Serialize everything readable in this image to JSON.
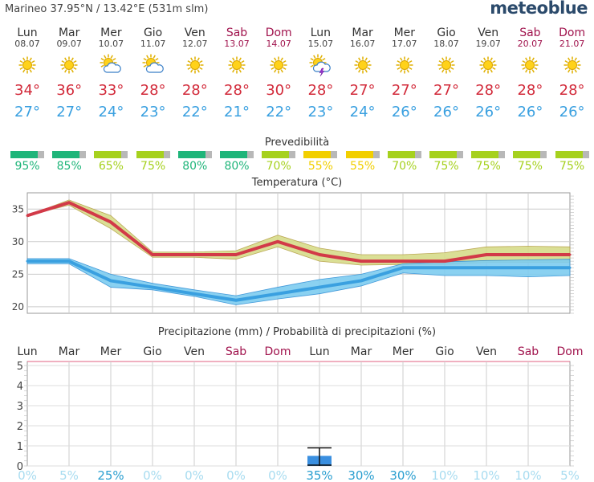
{
  "header": {
    "location": "Marineo  37.95°N / 13.42°E (531m slm)",
    "brand": "meteoblue"
  },
  "days": [
    {
      "name": "Lun",
      "date": "08.07",
      "weekend": false,
      "icon": "sun-icon",
      "tmax": "34°",
      "tmin": "27°",
      "pred": 95,
      "pred_label": "95%",
      "pred_color": "#1fb57a"
    },
    {
      "name": "Mar",
      "date": "09.07",
      "weekend": false,
      "icon": "sun-icon",
      "tmax": "36°",
      "tmin": "27°",
      "pred": 85,
      "pred_label": "85%",
      "pred_color": "#1fb57a"
    },
    {
      "name": "Mer",
      "date": "10.07",
      "weekend": false,
      "icon": "sun-cloud-icon",
      "tmax": "33°",
      "tmin": "24°",
      "pred": 65,
      "pred_label": "65%",
      "pred_color": "#a6d11e"
    },
    {
      "name": "Gio",
      "date": "11.07",
      "weekend": false,
      "icon": "sun-cloud-icon",
      "tmax": "28°",
      "tmin": "23°",
      "pred": 75,
      "pred_label": "75%",
      "pred_color": "#a6d11e"
    },
    {
      "name": "Ven",
      "date": "12.07",
      "weekend": false,
      "icon": "sun-icon",
      "tmax": "28°",
      "tmin": "22°",
      "pred": 80,
      "pred_label": "80%",
      "pred_color": "#1fb57a"
    },
    {
      "name": "Sab",
      "date": "13.07",
      "weekend": true,
      "icon": "sun-icon",
      "tmax": "28°",
      "tmin": "21°",
      "pred": 80,
      "pred_label": "80%",
      "pred_color": "#1fb57a"
    },
    {
      "name": "Dom",
      "date": "14.07",
      "weekend": true,
      "icon": "sun-icon",
      "tmax": "30°",
      "tmin": "22°",
      "pred": 70,
      "pred_label": "70%",
      "pred_color": "#a6d11e"
    },
    {
      "name": "Lun",
      "date": "15.07",
      "weekend": false,
      "icon": "sun-storm-icon",
      "tmax": "28°",
      "tmin": "23°",
      "pred": 55,
      "pred_label": "55%",
      "pred_color": "#f2cf00"
    },
    {
      "name": "Mar",
      "date": "16.07",
      "weekend": false,
      "icon": "sun-icon",
      "tmax": "27°",
      "tmin": "24°",
      "pred": 55,
      "pred_label": "55%",
      "pred_color": "#f2cf00"
    },
    {
      "name": "Mer",
      "date": "17.07",
      "weekend": false,
      "icon": "sun-icon",
      "tmax": "27°",
      "tmin": "26°",
      "pred": 70,
      "pred_label": "70%",
      "pred_color": "#a6d11e"
    },
    {
      "name": "Gio",
      "date": "18.07",
      "weekend": false,
      "icon": "sun-icon",
      "tmax": "27°",
      "tmin": "26°",
      "pred": 75,
      "pred_label": "75%",
      "pred_color": "#a6d11e"
    },
    {
      "name": "Ven",
      "date": "19.07",
      "weekend": false,
      "icon": "sun-icon",
      "tmax": "28°",
      "tmin": "26°",
      "pred": 75,
      "pred_label": "75%",
      "pred_color": "#a6d11e"
    },
    {
      "name": "Sab",
      "date": "20.07",
      "weekend": true,
      "icon": "sun-icon",
      "tmax": "28°",
      "tmin": "26°",
      "pred": 75,
      "pred_label": "75%",
      "pred_color": "#a6d11e"
    },
    {
      "name": "Dom",
      "date": "21.07",
      "weekend": true,
      "icon": "sun-icon",
      "tmax": "28°",
      "tmin": "26°",
      "pred": 75,
      "pred_label": "75%",
      "pred_color": "#a6d11e"
    }
  ],
  "predictability_title": "Prevedibilità",
  "chart_data": [
    {
      "type": "line",
      "title": "Temperatura (°C)",
      "ylim": [
        19,
        37.5
      ],
      "yticks": [
        20,
        25,
        30,
        35
      ],
      "x": [
        0,
        1,
        2,
        3,
        4,
        5,
        6,
        7,
        8,
        9,
        10,
        11,
        12,
        13
      ],
      "series": [
        {
          "values": [
            34,
            36,
            33,
            28,
            28,
            28,
            30,
            28,
            27,
            27,
            27,
            28,
            28,
            28
          ],
          "band_low": [
            34,
            35.6,
            32,
            27.6,
            27.6,
            27.3,
            29.2,
            27,
            26.4,
            26.5,
            26.5,
            26.8,
            26.8,
            26.8
          ],
          "band_high": [
            34,
            36.4,
            34,
            28.4,
            28.4,
            28.6,
            31,
            29,
            28,
            28,
            28.3,
            29.2,
            29.3,
            29.2
          ]
        },
        {
          "values": [
            27,
            27,
            24,
            23,
            22,
            21,
            22,
            23,
            24,
            26,
            26,
            26,
            26,
            26
          ],
          "band_low": [
            26.6,
            26.6,
            23,
            22.6,
            21.6,
            20.3,
            21.2,
            22,
            23.2,
            25.2,
            24.8,
            24.8,
            24.6,
            24.8
          ],
          "band_high": [
            27.4,
            27.4,
            25,
            23.6,
            22.6,
            21.7,
            23,
            24.2,
            25,
            26.6,
            26.9,
            27.1,
            27.2,
            27.3
          ]
        }
      ],
      "grid": true,
      "colors": {
        "max": "#d23a48",
        "min": "#3aa0e0",
        "max_band": "#d7dc8a",
        "min_band": "#7ecdf0"
      }
    },
    {
      "type": "bar",
      "title": "Precipitazione (mm) / Probabilità di precipitazioni (%)",
      "categories": [
        "Lun",
        "Mar",
        "Mer",
        "Gio",
        "Ven",
        "Sab",
        "Dom",
        "Lun",
        "Mar",
        "Mer",
        "Gio",
        "Ven",
        "Sab",
        "Dom"
      ],
      "weekend": [
        false,
        false,
        false,
        false,
        false,
        true,
        true,
        false,
        false,
        false,
        false,
        false,
        true,
        true
      ],
      "values": [
        0,
        0,
        0,
        0,
        0,
        0,
        0,
        0.5,
        0,
        0,
        0,
        0,
        0,
        0
      ],
      "range_high": [
        0,
        0,
        0,
        0,
        0,
        0,
        0,
        0.9,
        0,
        0,
        0,
        0,
        0,
        0
      ],
      "probability": [
        "0%",
        "5%",
        "25%",
        "0%",
        "0%",
        "0%",
        "0%",
        "35%",
        "30%",
        "30%",
        "10%",
        "10%",
        "10%",
        "5%"
      ],
      "prob_values": [
        0,
        5,
        25,
        0,
        0,
        0,
        0,
        35,
        30,
        30,
        10,
        10,
        10,
        5
      ],
      "ylim": [
        0,
        5.2
      ],
      "yticks": [
        0,
        1,
        2,
        3,
        4,
        5
      ],
      "grid": true,
      "colors": {
        "bar": "#3a8fe0"
      }
    }
  ]
}
